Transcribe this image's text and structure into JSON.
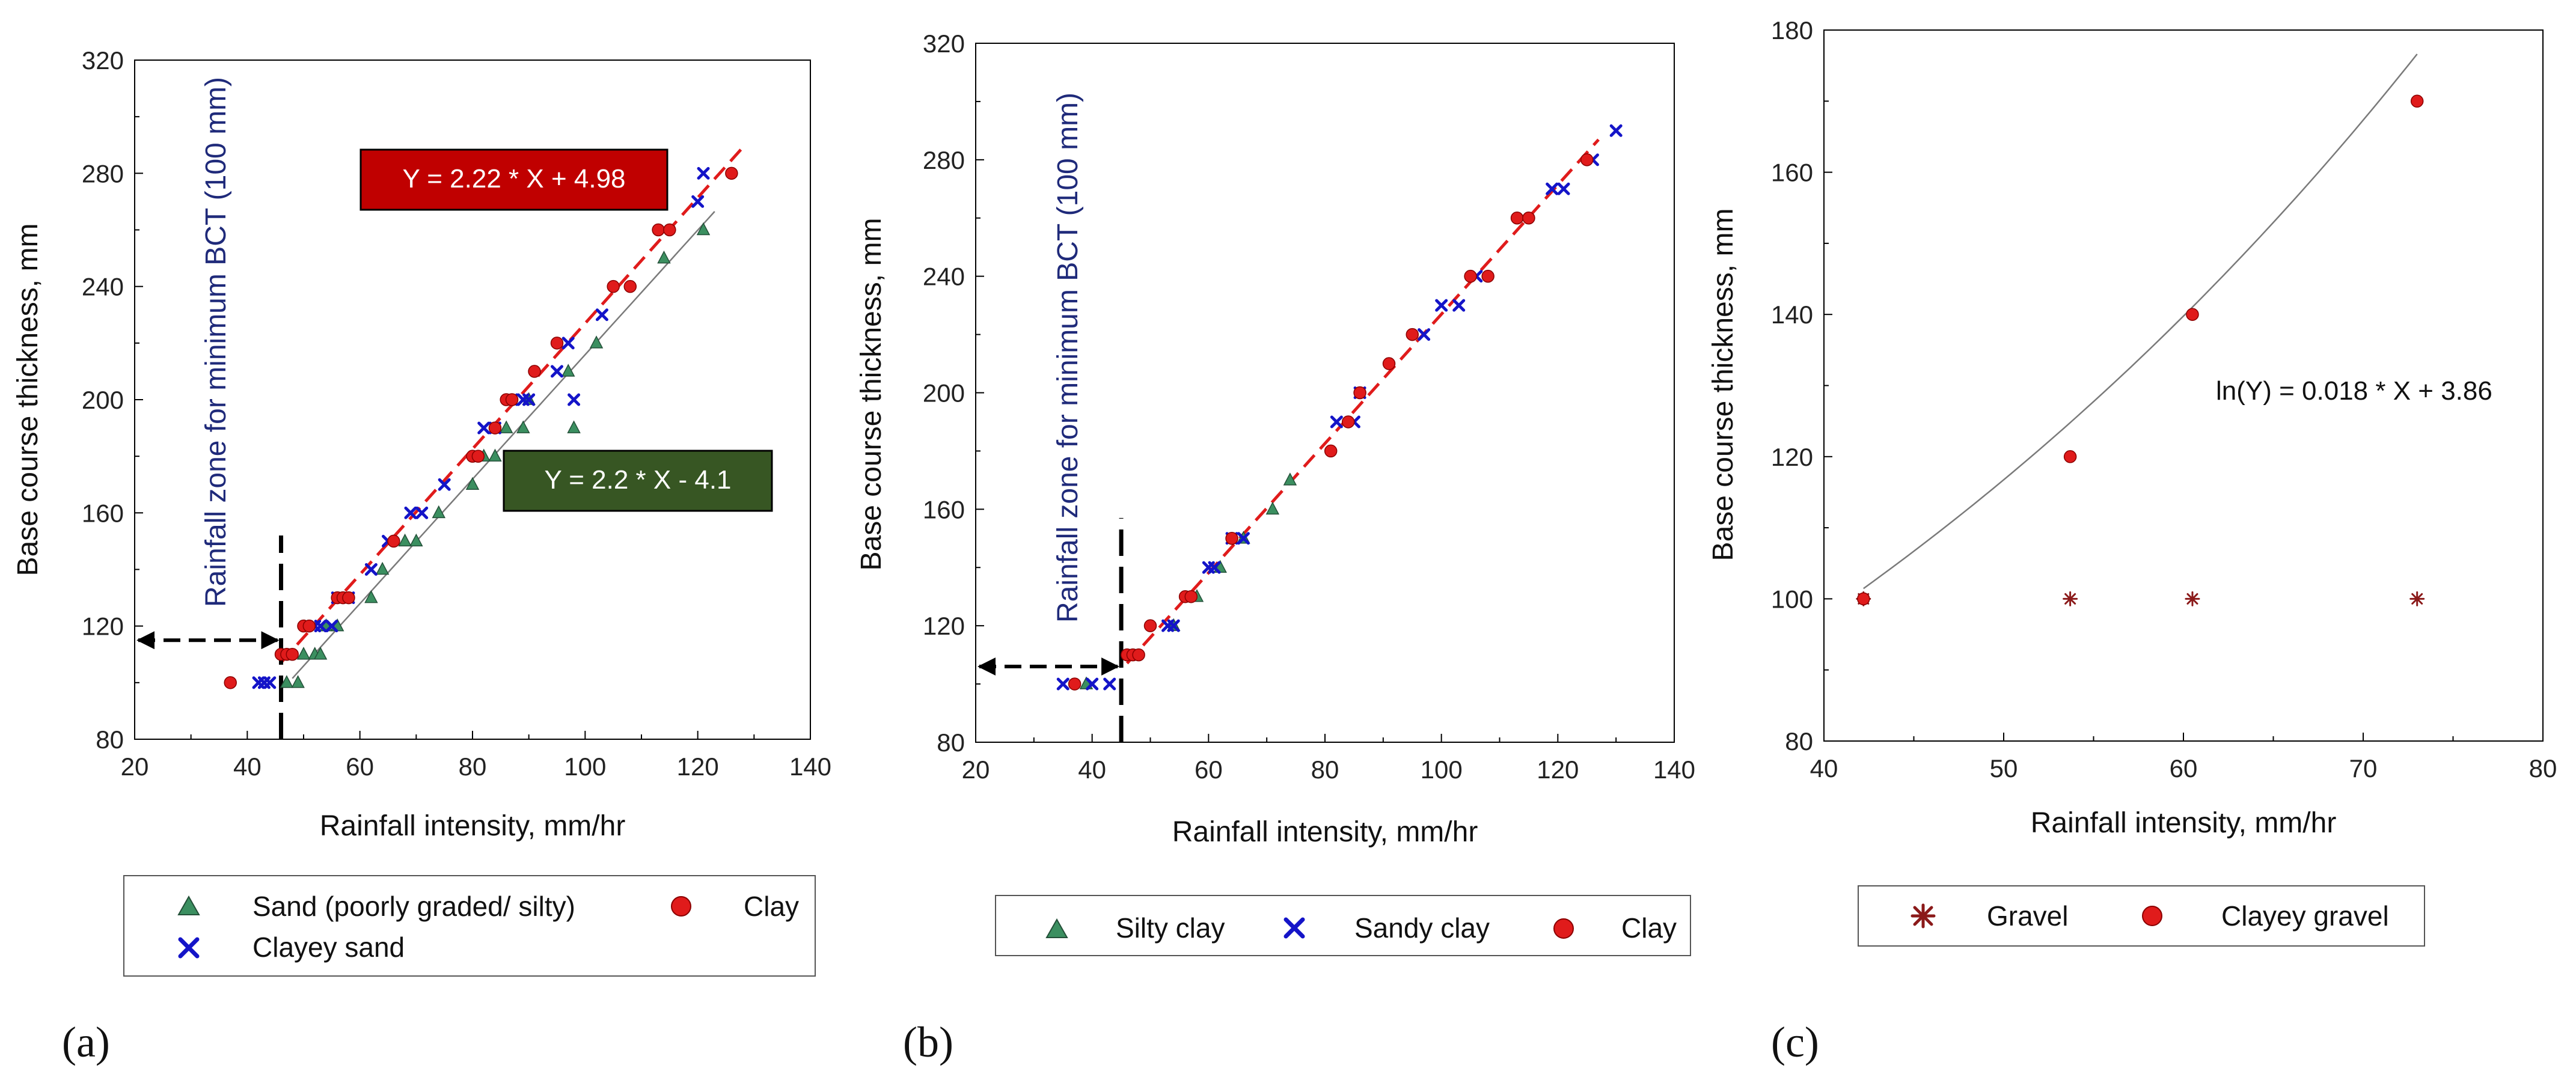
{
  "colors": {
    "sand": "#3b8f60",
    "clay": "#e01b1b",
    "blue": "#1414c8",
    "gravel": "#8b1a1a",
    "fit_red": "#e01b1b",
    "fit_gray": "#7a7a7a",
    "eq_red_bg": "#c00000",
    "eq_green_bg": "#375623",
    "zone_text": "#1f2a7a"
  },
  "chart_data": [
    {
      "type": "scatter",
      "panel_label": "(a)",
      "xlabel": "Rainfall intensity, mm/hr",
      "ylabel": "Base course thickness, mm",
      "xlim": [
        20,
        140
      ],
      "ylim": [
        80,
        320
      ],
      "xticks": [
        20,
        40,
        60,
        80,
        100,
        120,
        140
      ],
      "yticks": [
        80,
        120,
        160,
        200,
        240,
        280,
        320
      ],
      "zone_label": "Rainfall zone for minimum BCT (100 mm)",
      "threshold_x": 46,
      "arrow_y": 115,
      "series": [
        {
          "name": "Sand (poorly graded/ silty)",
          "marker": "triangle",
          "color": "#3b8f60",
          "points": [
            [
              47,
              100
            ],
            [
              49,
              100
            ],
            [
              50,
              110
            ],
            [
              52,
              110
            ],
            [
              53,
              110
            ],
            [
              54,
              120
            ],
            [
              56,
              120
            ],
            [
              62,
              130
            ],
            [
              64,
              140
            ],
            [
              68,
              150
            ],
            [
              70,
              150
            ],
            [
              74,
              160
            ],
            [
              80,
              170
            ],
            [
              82,
              180
            ],
            [
              84,
              180
            ],
            [
              86,
              190
            ],
            [
              89,
              190
            ],
            [
              90,
              200
            ],
            [
              97,
              210
            ],
            [
              98,
              190
            ],
            [
              102,
              220
            ],
            [
              114,
              250
            ],
            [
              121,
              260
            ]
          ]
        },
        {
          "name": "Clayey sand",
          "marker": "x",
          "color": "#1414c8",
          "points": [
            [
              42,
              100
            ],
            [
              43,
              100
            ],
            [
              44,
              100
            ],
            [
              52,
              120
            ],
            [
              53,
              120
            ],
            [
              55,
              120
            ],
            [
              56,
              130
            ],
            [
              58,
              130
            ],
            [
              62,
              140
            ],
            [
              65,
              150
            ],
            [
              69,
              160
            ],
            [
              71,
              160
            ],
            [
              75,
              170
            ],
            [
              82,
              190
            ],
            [
              84,
              190
            ],
            [
              87,
              200
            ],
            [
              89,
              200
            ],
            [
              90,
              200
            ],
            [
              95,
              210
            ],
            [
              97,
              220
            ],
            [
              98,
              200
            ],
            [
              103,
              230
            ],
            [
              120,
              270
            ],
            [
              121,
              280
            ]
          ]
        },
        {
          "name": "Clay",
          "marker": "circle",
          "color": "#e01b1b",
          "points": [
            [
              37,
              100
            ],
            [
              46,
              110
            ],
            [
              47,
              110
            ],
            [
              48,
              110
            ],
            [
              50,
              120
            ],
            [
              51,
              120
            ],
            [
              56,
              130
            ],
            [
              57,
              130
            ],
            [
              58,
              130
            ],
            [
              66,
              150
            ],
            [
              80,
              180
            ],
            [
              81,
              180
            ],
            [
              84,
              190
            ],
            [
              86,
              200
            ],
            [
              87,
              200
            ],
            [
              91,
              210
            ],
            [
              95,
              220
            ],
            [
              105,
              240
            ],
            [
              108,
              240
            ],
            [
              113,
              260
            ],
            [
              115,
              260
            ],
            [
              126,
              280
            ]
          ]
        }
      ],
      "fits": [
        {
          "equation": "Y = 2.22 * X + 4.98",
          "slope": 2.22,
          "intercept": 4.98,
          "x_range": [
            46,
            128
          ],
          "style": "dashed",
          "color": "#e01b1b",
          "box_color": "#c00000"
        },
        {
          "equation": "Y = 2.2 * X - 4.1",
          "slope": 2.2,
          "intercept": -4.1,
          "x_range": [
            48,
            123
          ],
          "style": "solid",
          "color": "#7a7a7a",
          "box_color": "#375623"
        }
      ],
      "legend": [
        "Sand (poorly graded/ silty)",
        "Clay",
        "Clayey sand"
      ]
    },
    {
      "type": "scatter",
      "panel_label": "(b)",
      "xlabel": "Rainfall intensity, mm/hr",
      "ylabel": "Base course thickness, mm",
      "xlim": [
        20,
        140
      ],
      "ylim": [
        80,
        320
      ],
      "xticks": [
        20,
        40,
        60,
        80,
        100,
        120,
        140
      ],
      "yticks": [
        80,
        120,
        160,
        200,
        240,
        280,
        320
      ],
      "zone_label": "Rainfall zone for minimum BCT (100 mm)",
      "threshold_x": 45,
      "arrow_y": 106,
      "series": [
        {
          "name": "Silty clay",
          "marker": "triangle",
          "color": "#3b8f60",
          "points": [
            [
              39,
              100
            ],
            [
              54,
              120
            ],
            [
              58,
              130
            ],
            [
              62,
              140
            ],
            [
              66,
              150
            ],
            [
              71,
              160
            ],
            [
              74,
              170
            ]
          ]
        },
        {
          "name": "Sandy clay",
          "marker": "x",
          "color": "#1414c8",
          "points": [
            [
              35,
              100
            ],
            [
              40,
              100
            ],
            [
              43,
              100
            ],
            [
              53,
              120
            ],
            [
              54,
              120
            ],
            [
              60,
              140
            ],
            [
              61,
              140
            ],
            [
              64,
              150
            ],
            [
              66,
              150
            ],
            [
              82,
              190
            ],
            [
              85,
              190
            ],
            [
              86,
              200
            ],
            [
              97,
              220
            ],
            [
              100,
              230
            ],
            [
              103,
              230
            ],
            [
              106,
              240
            ],
            [
              119,
              270
            ],
            [
              121,
              270
            ],
            [
              126,
              280
            ],
            [
              130,
              290
            ]
          ]
        },
        {
          "name": "Clay",
          "marker": "circle",
          "color": "#e01b1b",
          "points": [
            [
              37,
              100
            ],
            [
              46,
              110
            ],
            [
              47,
              110
            ],
            [
              48,
              110
            ],
            [
              50,
              120
            ],
            [
              56,
              130
            ],
            [
              57,
              130
            ],
            [
              64,
              150
            ],
            [
              81,
              180
            ],
            [
              84,
              190
            ],
            [
              86,
              200
            ],
            [
              91,
              210
            ],
            [
              95,
              220
            ],
            [
              105,
              240
            ],
            [
              108,
              240
            ],
            [
              113,
              260
            ],
            [
              115,
              260
            ],
            [
              125,
              280
            ]
          ]
        }
      ],
      "fits": [
        {
          "slope": 2.22,
          "intercept": 4.98,
          "x_range": [
            46,
            127
          ],
          "style": "dashed",
          "color": "#e01b1b"
        }
      ],
      "legend": [
        "Silty clay",
        "Sandy clay",
        "Clay"
      ]
    },
    {
      "type": "scatter",
      "panel_label": "(c)",
      "xlabel": "Rainfall intensity, mm/hr",
      "ylabel": "Base course thickness, mm",
      "xlim": [
        40,
        80
      ],
      "ylim": [
        80,
        180
      ],
      "xticks": [
        40,
        50,
        60,
        70,
        80
      ],
      "yticks": [
        80,
        100,
        120,
        140,
        160,
        180
      ],
      "series": [
        {
          "name": "Gravel",
          "marker": "asterisk",
          "color": "#8b1a1a",
          "points": [
            [
              42.2,
              100
            ],
            [
              53.7,
              100
            ],
            [
              60.5,
              100
            ],
            [
              73,
              100
            ]
          ]
        },
        {
          "name": "Clayey gravel",
          "marker": "circle",
          "color": "#e01b1b",
          "points": [
            [
              42.2,
              100
            ],
            [
              53.7,
              120
            ],
            [
              60.5,
              140
            ],
            [
              73,
              170
            ]
          ]
        }
      ],
      "fits": [
        {
          "equation": "ln(Y) = 0.018 * X + 3.86",
          "model": "exp",
          "a": 0.018,
          "b": 3.86,
          "x_range": [
            42.2,
            73
          ],
          "style": "solid",
          "color": "#7a7a7a"
        }
      ],
      "legend": [
        "Gravel",
        "Clayey gravel"
      ]
    }
  ]
}
